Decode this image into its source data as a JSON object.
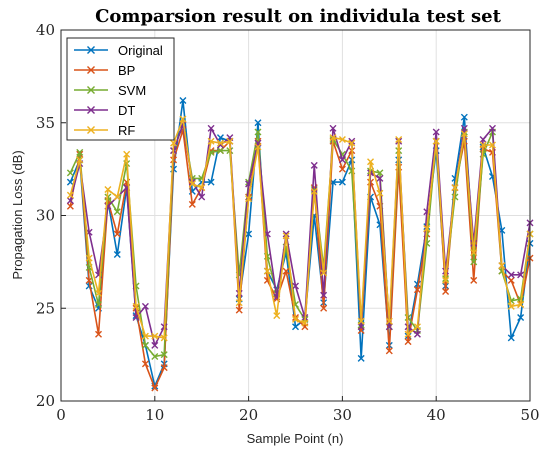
{
  "chart_data": {
    "type": "line",
    "title": "Comparsion result on individula test set",
    "xlabel": "Sample Point (n)",
    "ylabel": "Propagation Loss (dB)",
    "xlim": [
      0,
      50
    ],
    "ylim": [
      20,
      40
    ],
    "xticks": [
      0,
      10,
      20,
      30,
      40,
      50
    ],
    "yticks": [
      20,
      25,
      30,
      35,
      40
    ],
    "grid": true,
    "legend_position": "top-left",
    "marker": "x",
    "x": [
      1,
      2,
      3,
      4,
      5,
      6,
      7,
      8,
      9,
      10,
      11,
      12,
      13,
      14,
      15,
      16,
      17,
      18,
      19,
      20,
      21,
      22,
      23,
      24,
      25,
      26,
      27,
      28,
      29,
      30,
      31,
      32,
      33,
      34,
      35,
      36,
      37,
      38,
      39,
      40,
      41,
      42,
      43,
      44,
      45,
      46,
      47,
      48,
      49,
      50
    ],
    "series": [
      {
        "name": "Original",
        "color": "#0072BD",
        "values": [
          31.8,
          33.0,
          26.2,
          25.0,
          30.8,
          27.9,
          31.5,
          24.6,
          23.0,
          20.8,
          22.0,
          32.5,
          36.2,
          31.3,
          31.8,
          31.8,
          34.2,
          34.0,
          25.5,
          29.0,
          35.0,
          27.0,
          26.0,
          28.0,
          24.0,
          24.4,
          30.0,
          25.3,
          31.8,
          31.8,
          33.0,
          22.3,
          31.0,
          29.5,
          23.0,
          33.0,
          23.5,
          26.3,
          29.4,
          33.5,
          26.2,
          32.0,
          35.3,
          28.0,
          33.7,
          32.1,
          29.2,
          23.4,
          24.5,
          28.5
        ]
      },
      {
        "name": "BP",
        "color": "#D95319",
        "values": [
          30.5,
          33.3,
          26.5,
          23.6,
          30.8,
          29.0,
          31.8,
          25.0,
          22.0,
          20.7,
          21.8,
          33.0,
          34.6,
          30.6,
          31.5,
          33.5,
          33.5,
          34.0,
          24.9,
          31.0,
          34.0,
          26.5,
          25.5,
          27.0,
          24.5,
          24.0,
          31.5,
          25.0,
          34.0,
          32.5,
          33.5,
          23.8,
          31.8,
          30.5,
          22.7,
          32.6,
          23.2,
          26.0,
          29.0,
          34.0,
          25.9,
          31.5,
          34.0,
          26.5,
          33.6,
          33.4,
          27.0,
          26.5,
          25.2,
          27.7
        ]
      },
      {
        "name": "SVM",
        "color": "#77AC30",
        "values": [
          32.3,
          33.4,
          27.2,
          25.2,
          31.0,
          30.2,
          32.8,
          26.2,
          23.0,
          22.4,
          22.5,
          33.5,
          34.9,
          32.0,
          32.0,
          33.4,
          33.5,
          33.5,
          26.8,
          31.8,
          34.5,
          27.8,
          25.8,
          28.3,
          25.2,
          24.4,
          31.4,
          27.2,
          34.1,
          33.3,
          32.4,
          24.1,
          32.4,
          32.3,
          24.0,
          33.5,
          24.5,
          23.8,
          28.5,
          34.0,
          26.6,
          31.0,
          34.5,
          27.5,
          33.3,
          34.5,
          27.0,
          25.4,
          25.5,
          29.0
        ]
      },
      {
        "name": "DT",
        "color": "#7E2F8E",
        "values": [
          30.8,
          32.8,
          29.1,
          26.8,
          30.5,
          31.0,
          31.5,
          24.5,
          25.1,
          23.0,
          24.0,
          33.5,
          34.9,
          31.8,
          31.0,
          34.7,
          33.8,
          34.2,
          25.8,
          31.7,
          33.9,
          29.0,
          25.6,
          29.0,
          26.2,
          24.5,
          32.7,
          25.7,
          34.7,
          33.0,
          34.0,
          24.0,
          32.3,
          32.0,
          24.0,
          34.0,
          24.0,
          23.6,
          30.2,
          34.5,
          27.0,
          31.5,
          34.7,
          28.5,
          34.1,
          34.7,
          27.3,
          26.8,
          26.8,
          29.6
        ]
      },
      {
        "name": "RF",
        "color": "#EDB120",
        "values": [
          31.1,
          33.0,
          27.7,
          25.8,
          31.4,
          31.0,
          33.3,
          25.1,
          23.5,
          23.5,
          23.4,
          33.9,
          35.2,
          31.7,
          31.5,
          34.0,
          33.9,
          34.0,
          25.3,
          30.9,
          33.7,
          27.0,
          24.6,
          28.9,
          24.4,
          24.2,
          31.3,
          26.9,
          34.2,
          34.1,
          33.9,
          24.3,
          32.9,
          31.2,
          24.3,
          34.1,
          23.6,
          24.0,
          29.3,
          34.0,
          26.5,
          31.5,
          34.4,
          28.0,
          33.8,
          33.8,
          27.3,
          25.1,
          25.2,
          29.0
        ]
      }
    ]
  }
}
